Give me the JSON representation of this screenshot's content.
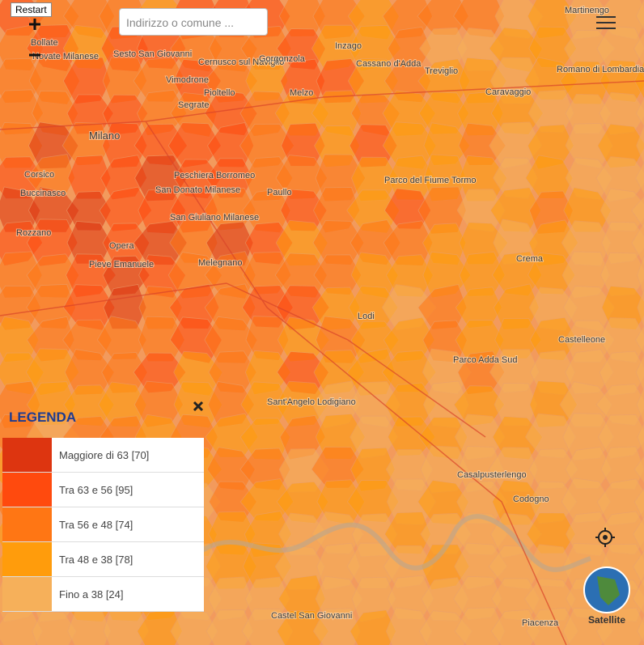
{
  "controls": {
    "restart": "Restart",
    "search_placeholder": "Indirizzo o comune ...",
    "satellite": "Satellite"
  },
  "legend": {
    "title": "LEGENDA",
    "items": [
      {
        "label": "Maggiore di 63 [70]",
        "color": "#dd3510"
      },
      {
        "label": "Tra 63 e 56 [95]",
        "color": "#ff4a0e"
      },
      {
        "label": "Tra 56 e 48 [74]",
        "color": "#ff7614"
      },
      {
        "label": "Tra 48 e 38 [78]",
        "color": "#ff9c0c"
      },
      {
        "label": "Fino a 38 [24]",
        "color": "#f6b05a"
      }
    ]
  },
  "places": [
    "Milano",
    "Segrate",
    "Pioltello",
    "Vimodrone",
    "Cernusco sul Naviglio",
    "Sesto San Giovanni",
    "Bollate",
    "Novate Milanese",
    "Gorgonzola",
    "Inzago",
    "Cassano d'Adda",
    "Treviglio",
    "Caravaggio",
    "Romano di Lombardia",
    "Martinengo",
    "Melzo",
    "Peschiera Borromeo",
    "San Donato Milanese",
    "San Giuliano Milanese",
    "Paullo",
    "Corsico",
    "Buccinasco",
    "Rozzano",
    "Opera",
    "Pieve Emanuele",
    "Melegnano",
    "Lodi",
    "Crema",
    "Castelleone",
    "Parco Adda Sud",
    "Sant'Angelo Lodigiano",
    "Casalpusterlengo",
    "Codogno",
    "Piacenza",
    "Castel San Giovanni",
    "Parco del Fiume Tormo"
  ]
}
